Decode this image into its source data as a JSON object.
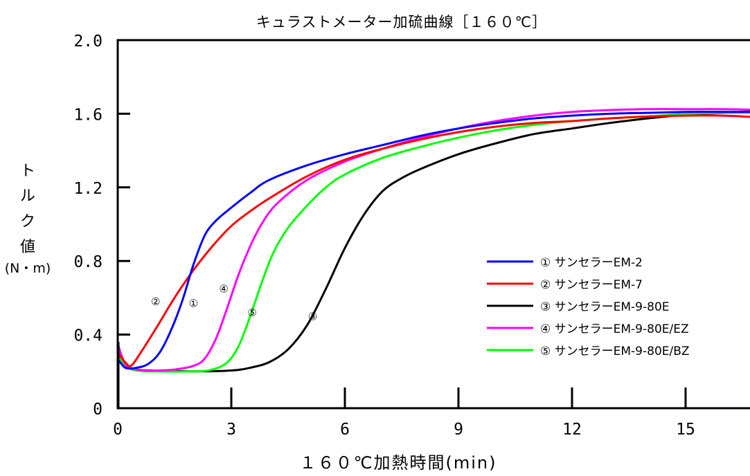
{
  "chart_data": {
    "type": "line",
    "title": "キュラストメーター加硫曲線［１６０℃］",
    "xlabel": "１６０℃加熱時間(min)",
    "ylabel_lines": [
      "ト",
      "ル",
      "ク",
      "値",
      "(N・m)"
    ],
    "xlim": [
      0,
      17
    ],
    "ylim": [
      0,
      2.0
    ],
    "xticks": [
      0,
      3,
      6,
      9,
      12,
      15
    ],
    "xtick_labels": [
      "0",
      "3",
      "6",
      "9",
      "12",
      "15"
    ],
    "yticks": [
      0,
      0.4,
      0.8,
      1.2,
      1.6,
      2.0
    ],
    "ytick_labels": [
      "0",
      "0.4",
      "0.8",
      "1.2",
      "1.6",
      "2.0"
    ],
    "grid": false,
    "legend_position": "right",
    "series": [
      {
        "name": "① サンセラーEM-2",
        "marker": "①",
        "color": "#0000ff",
        "label_at": [
          2.0,
          0.55
        ],
        "points": [
          [
            0,
            0.27
          ],
          [
            0.2,
            0.22
          ],
          [
            0.5,
            0.22
          ],
          [
            0.8,
            0.24
          ],
          [
            1.1,
            0.3
          ],
          [
            1.4,
            0.42
          ],
          [
            1.7,
            0.58
          ],
          [
            2.0,
            0.78
          ],
          [
            2.3,
            0.94
          ],
          [
            2.6,
            1.02
          ],
          [
            3,
            1.09
          ],
          [
            3.5,
            1.17
          ],
          [
            4,
            1.24
          ],
          [
            5,
            1.32
          ],
          [
            6,
            1.38
          ],
          [
            7,
            1.43
          ],
          [
            8,
            1.48
          ],
          [
            9,
            1.52
          ],
          [
            10,
            1.55
          ],
          [
            11,
            1.575
          ],
          [
            12,
            1.59
          ],
          [
            13,
            1.6
          ],
          [
            14,
            1.605
          ],
          [
            15,
            1.61
          ],
          [
            16,
            1.61
          ],
          [
            17,
            1.61
          ]
        ]
      },
      {
        "name": "② サンセラーEM-7",
        "marker": "②",
        "color": "#ff0000",
        "label_at": [
          1.0,
          0.56
        ],
        "points": [
          [
            0,
            0.3
          ],
          [
            0.2,
            0.25
          ],
          [
            0.35,
            0.23
          ],
          [
            0.6,
            0.3
          ],
          [
            1.0,
            0.43
          ],
          [
            1.5,
            0.6
          ],
          [
            2.0,
            0.75
          ],
          [
            2.5,
            0.88
          ],
          [
            3,
            0.99
          ],
          [
            3.5,
            1.07
          ],
          [
            4,
            1.14
          ],
          [
            5,
            1.26
          ],
          [
            6,
            1.35
          ],
          [
            7,
            1.41
          ],
          [
            8,
            1.46
          ],
          [
            9,
            1.5
          ],
          [
            10,
            1.53
          ],
          [
            11,
            1.55
          ],
          [
            12,
            1.56
          ],
          [
            13,
            1.575
          ],
          [
            14,
            1.585
          ],
          [
            15,
            1.59
          ],
          [
            16,
            1.59
          ],
          [
            17,
            1.58
          ]
        ]
      },
      {
        "name": "③ サンセラーEM-9-80E",
        "marker": "③",
        "color": "#000000",
        "label_at": [
          5.15,
          0.48
        ],
        "points": [
          [
            0,
            0.35
          ],
          [
            0.2,
            0.24
          ],
          [
            0.5,
            0.21
          ],
          [
            1,
            0.205
          ],
          [
            2,
            0.2
          ],
          [
            3,
            0.205
          ],
          [
            3.5,
            0.22
          ],
          [
            4,
            0.25
          ],
          [
            4.5,
            0.32
          ],
          [
            5,
            0.45
          ],
          [
            5.5,
            0.65
          ],
          [
            6,
            0.87
          ],
          [
            6.5,
            1.05
          ],
          [
            7,
            1.18
          ],
          [
            7.5,
            1.25
          ],
          [
            8,
            1.3
          ],
          [
            9,
            1.38
          ],
          [
            10,
            1.44
          ],
          [
            11,
            1.49
          ],
          [
            12,
            1.52
          ],
          [
            13,
            1.55
          ],
          [
            14,
            1.575
          ],
          [
            15,
            1.595
          ],
          [
            16,
            1.605
          ],
          [
            17,
            1.615
          ]
        ]
      },
      {
        "name": "④ サンセラーEM-9-80E/EZ",
        "marker": "④",
        "color": "#ff00ff",
        "label_at": [
          2.8,
          0.63
        ],
        "points": [
          [
            0,
            0.35
          ],
          [
            0.2,
            0.24
          ],
          [
            0.5,
            0.21
          ],
          [
            1,
            0.205
          ],
          [
            1.5,
            0.21
          ],
          [
            2,
            0.23
          ],
          [
            2.3,
            0.27
          ],
          [
            2.6,
            0.38
          ],
          [
            2.9,
            0.55
          ],
          [
            3.2,
            0.73
          ],
          [
            3.5,
            0.88
          ],
          [
            3.8,
            1.0
          ],
          [
            4.2,
            1.11
          ],
          [
            5,
            1.24
          ],
          [
            6,
            1.34
          ],
          [
            7,
            1.41
          ],
          [
            8,
            1.47
          ],
          [
            9,
            1.52
          ],
          [
            10,
            1.56
          ],
          [
            11,
            1.59
          ],
          [
            12,
            1.61
          ],
          [
            13,
            1.62
          ],
          [
            14,
            1.625
          ],
          [
            15,
            1.625
          ],
          [
            16,
            1.625
          ],
          [
            17,
            1.62
          ]
        ]
      },
      {
        "name": "⑤ サンセラーEM-9-80E/BZ",
        "marker": "⑤",
        "color": "#00ff00",
        "label_at": [
          3.55,
          0.5
        ],
        "points": [
          [
            0,
            0.3
          ],
          [
            0.2,
            0.23
          ],
          [
            0.5,
            0.205
          ],
          [
            1,
            0.2
          ],
          [
            2,
            0.2
          ],
          [
            2.5,
            0.21
          ],
          [
            2.9,
            0.25
          ],
          [
            3.2,
            0.34
          ],
          [
            3.5,
            0.5
          ],
          [
            3.8,
            0.68
          ],
          [
            4.1,
            0.84
          ],
          [
            4.5,
            0.98
          ],
          [
            5,
            1.1
          ],
          [
            5.5,
            1.2
          ],
          [
            6,
            1.27
          ],
          [
            7,
            1.36
          ],
          [
            8,
            1.42
          ],
          [
            9,
            1.47
          ],
          [
            10,
            1.51
          ],
          [
            11,
            1.54
          ],
          [
            12,
            1.56
          ],
          [
            13,
            1.575
          ],
          [
            14,
            1.585
          ],
          [
            15,
            1.6
          ],
          [
            16,
            1.605
          ],
          [
            17,
            1.605
          ]
        ]
      }
    ]
  }
}
